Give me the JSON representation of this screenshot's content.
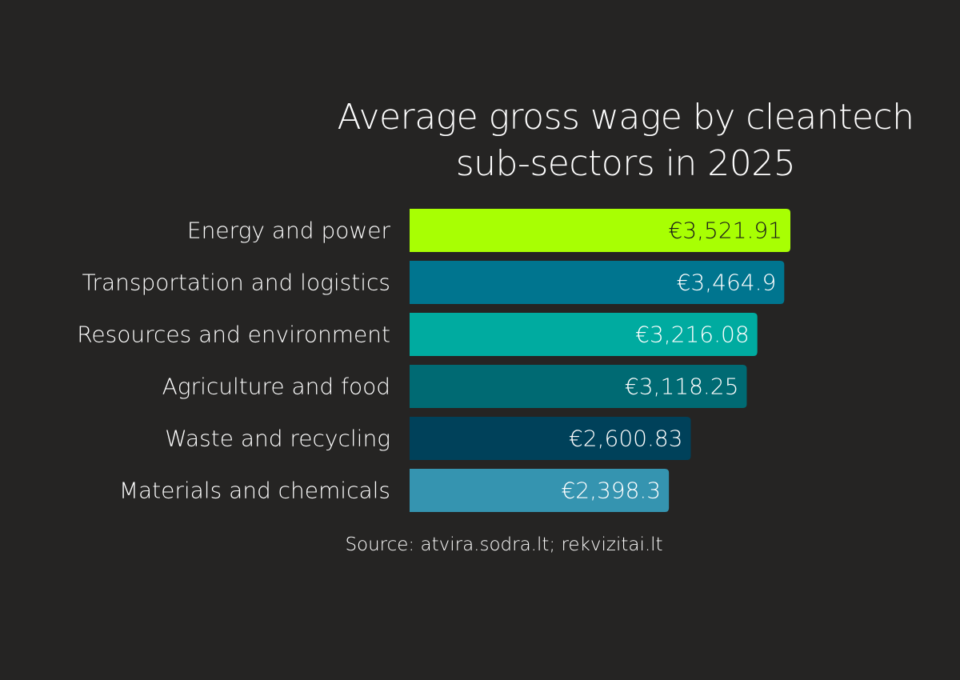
{
  "chart_data": {
    "type": "bar",
    "orientation": "horizontal",
    "title_lines": [
      "Average gross wage by cleantech",
      "sub-sectors in 2025"
    ],
    "categories": [
      "Energy and power",
      "Transportation and logistics",
      "Resources and environment",
      "Agriculture and food",
      "Waste and recycling",
      "Materials and chemicals"
    ],
    "values": [
      3521.91,
      3464.9,
      3216.08,
      3118.25,
      2600.83,
      2398.3
    ],
    "value_labels": [
      "€3,521.91",
      "€3,464.9",
      "€3,216.08",
      "€3,118.25",
      "€2,600.83",
      "€2,398.3"
    ],
    "bar_colors": [
      "#a8ff03",
      "#00758f",
      "#00aba0",
      "#006a73",
      "#00415a",
      "#3594b0"
    ],
    "value_label_colors": [
      "#1a1a1a",
      "#ffffff",
      "#ffffff",
      "#ffffff",
      "#ffffff",
      "#ffffff"
    ],
    "xlim": [
      0,
      3521.91
    ],
    "grid": false,
    "legend": "none",
    "source": "Source: atvira.sodra.lt; rekvizitai.lt"
  },
  "background_color": "#252423"
}
